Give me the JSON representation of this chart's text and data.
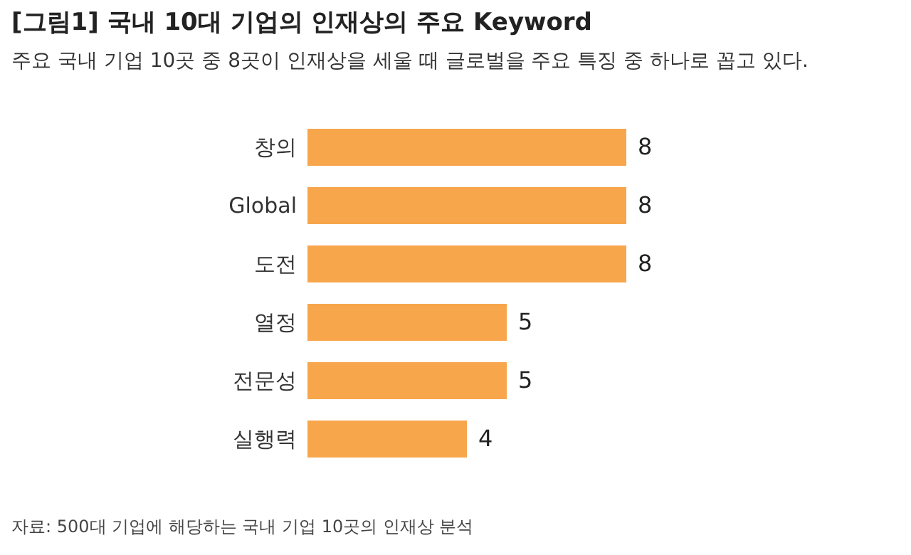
{
  "chart_data": {
    "type": "bar",
    "orientation": "horizontal",
    "title": "[그림1] 국내 10대 기업의 인재상의 주요 Keyword",
    "subtitle": "주요 국내 기업 10곳 중 8곳이 인재상을 세울 때 글로벌을 주요 특징 중 하나로 꼽고 있다.",
    "categories": [
      "창의",
      "Global",
      "도전",
      "열정",
      "전문성",
      "실행력"
    ],
    "values": [
      8,
      8,
      8,
      5,
      5,
      4
    ],
    "color": "#f7a64c",
    "data_labels": true,
    "annotations": [
      "자료: 500대 기업에 해당하는 국내 기업 10곳의 인재상 분석"
    ]
  }
}
